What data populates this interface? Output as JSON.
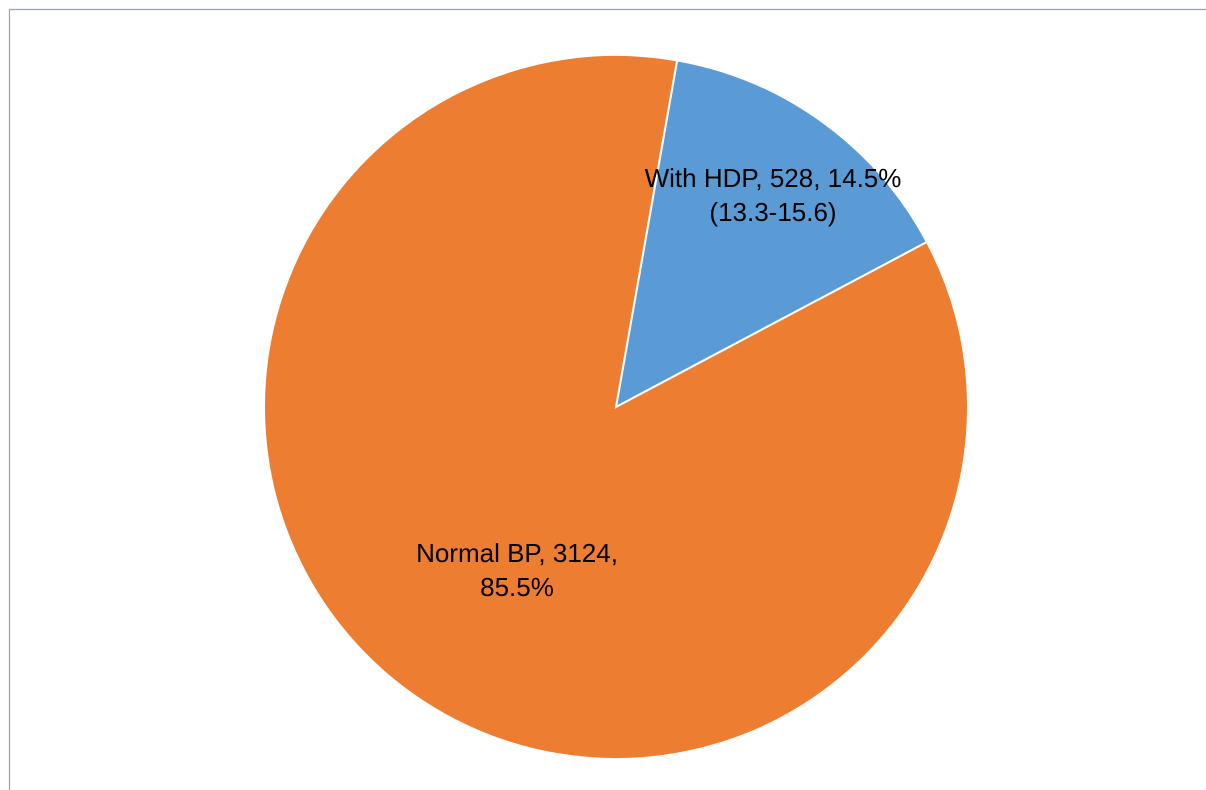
{
  "chart_data": {
    "type": "pie",
    "categories": [
      "With HDP",
      "Normal BP"
    ],
    "values": [
      528,
      3124
    ],
    "value_labels": [
      "With HDP, 528, 14.5%(13.3-15.6)",
      "Normal BP, 3124, 85.5%"
    ],
    "colors": [
      "#5b9bd5",
      "#ed7d31"
    ]
  }
}
